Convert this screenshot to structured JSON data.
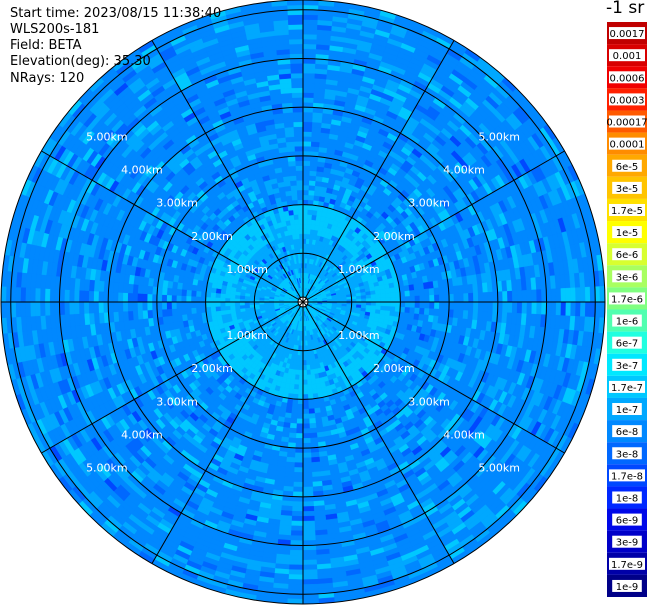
{
  "header": {
    "start_time": "Start time: 2023/08/15 11:38:40",
    "instrument": "WLS200s-181",
    "field": "Field: BETA",
    "elevation": "Elevation(deg): 35.30",
    "nrays": "NRays: 120"
  },
  "colorbar": {
    "unit": "-1 sr",
    "labels": [
      "0.0017",
      "0.001",
      "0.0006",
      "0.0003",
      "0.00017",
      "0.0001",
      "6e-5",
      "3e-5",
      "1.7e-5",
      "1e-5",
      "6e-6",
      "3e-6",
      "1.7e-6",
      "1e-6",
      "6e-7",
      "3e-7",
      "1.7e-7",
      "1e-7",
      "6e-8",
      "3e-8",
      "1.7e-8",
      "1e-8",
      "6e-9",
      "3e-9",
      "1.7e-9",
      "1e-9"
    ],
    "colors": [
      "#c00000",
      "#d80000",
      "#f00000",
      "#ff2000",
      "#ff5a00",
      "#ff8c00",
      "#ffa800",
      "#ffc400",
      "#ffe000",
      "#ffff00",
      "#d8ff30",
      "#a8ff60",
      "#80ff80",
      "#50ffb0",
      "#20ffe0",
      "#00e8ff",
      "#00c8ff",
      "#00a8ff",
      "#0088ff",
      "#0068ff",
      "#0048ff",
      "#0028ff",
      "#0008e8",
      "#0000c8",
      "#0000a8",
      "#000088"
    ]
  },
  "chart_data": {
    "type": "ppi",
    "title": "",
    "field": "BETA",
    "elevation_deg": 35.3,
    "nrays": 120,
    "range_rings_km": [
      1,
      2,
      3,
      4,
      5,
      6
    ],
    "range_ring_labels": [
      "1.00km",
      "2.00km",
      "3.00km",
      "4.00km",
      "5.00km"
    ],
    "azimuth_spokes_deg": [
      0,
      30,
      60,
      90,
      120,
      150,
      180,
      210,
      240,
      270,
      300,
      330
    ],
    "max_range_km": 6.2,
    "zones": [
      {
        "range_km": [
          0,
          0.6
        ],
        "dominant": "1.7e-7"
      },
      {
        "range_km": [
          0.6,
          1.35
        ],
        "dominant": "1e-7"
      },
      {
        "range_km": [
          1.35,
          2.0
        ],
        "dominant": "1.7e-7"
      },
      {
        "range_km": [
          2.0,
          6.2
        ],
        "dominant": "6e-8"
      }
    ]
  }
}
